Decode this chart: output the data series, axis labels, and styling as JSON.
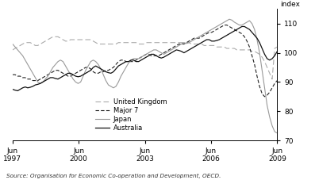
{
  "title": "",
  "ylabel": "index",
  "source": "Source: Organisation for Economic Co-operation and Development, OECD.",
  "ylim": [
    70,
    115
  ],
  "yticks": [
    70,
    80,
    90,
    100,
    110
  ],
  "x_tick_labels": [
    "Jun\n1997",
    "Jun\n2000",
    "Jun\n2003",
    "Jun\n2006",
    "Jun\n2009"
  ],
  "series": {
    "Australia": {
      "color": "#000000",
      "linestyle": "solid",
      "linewidth": 0.9
    },
    "Japan": {
      "color": "#999999",
      "linestyle": "solid",
      "linewidth": 0.9
    },
    "Major 7": {
      "color": "#000000",
      "linestyle": "dashed",
      "linewidth": 0.9
    },
    "United Kingdom": {
      "color": "#aaaaaa",
      "linestyle": "dashed",
      "linewidth": 0.9
    }
  },
  "australia": [
    87.5,
    87.2,
    87.0,
    87.5,
    88.0,
    88.3,
    88.0,
    88.2,
    88.5,
    89.0,
    89.2,
    89.5,
    90.0,
    90.5,
    91.0,
    91.5,
    91.5,
    91.2,
    91.0,
    91.5,
    92.0,
    92.5,
    93.0,
    93.0,
    92.5,
    92.0,
    91.8,
    92.0,
    92.5,
    93.0,
    93.5,
    94.0,
    95.0,
    95.5,
    95.0,
    94.5,
    94.0,
    93.5,
    93.2,
    93.0,
    93.5,
    94.5,
    95.5,
    96.0,
    96.5,
    97.0,
    97.0,
    97.5,
    97.5,
    97.0,
    97.0,
    97.5,
    98.0,
    98.5,
    99.0,
    99.5,
    99.5,
    99.0,
    98.5,
    98.2,
    98.5,
    99.0,
    99.5,
    100.0,
    100.5,
    101.0,
    100.8,
    100.5,
    100.0,
    100.5,
    101.0,
    101.5,
    102.0,
    102.5,
    103.0,
    103.5,
    104.0,
    104.5,
    104.5,
    104.0,
    104.0,
    104.2,
    104.5,
    105.0,
    105.5,
    106.0,
    106.5,
    107.0,
    107.5,
    108.0,
    108.5,
    109.0,
    109.0,
    108.5,
    108.0,
    107.0,
    106.0,
    105.0,
    103.5,
    101.5,
    99.5,
    98.0,
    97.5,
    98.0,
    99.0,
    100.5
  ],
  "japan": [
    103.0,
    102.0,
    101.0,
    100.0,
    99.0,
    97.5,
    96.0,
    94.5,
    93.0,
    91.5,
    90.0,
    89.5,
    90.0,
    91.0,
    92.0,
    93.5,
    95.0,
    96.0,
    97.0,
    97.5,
    97.0,
    95.5,
    94.0,
    92.5,
    91.0,
    90.0,
    89.5,
    90.0,
    92.0,
    94.0,
    95.5,
    97.0,
    97.5,
    97.0,
    96.0,
    94.5,
    92.5,
    90.5,
    89.0,
    88.5,
    88.0,
    88.5,
    90.0,
    92.0,
    93.5,
    95.0,
    96.5,
    97.5,
    98.0,
    98.0,
    98.0,
    98.5,
    99.0,
    99.5,
    100.0,
    100.5,
    101.0,
    101.0,
    100.5,
    100.0,
    99.5,
    100.0,
    100.5,
    101.0,
    101.5,
    102.0,
    102.5,
    103.0,
    103.5,
    103.2,
    103.5,
    104.0,
    104.5,
    105.0,
    105.5,
    106.0,
    106.5,
    107.0,
    107.5,
    108.0,
    108.5,
    109.0,
    109.5,
    110.0,
    110.5,
    111.0,
    111.5,
    111.2,
    110.5,
    110.0,
    109.5,
    109.5,
    110.0,
    110.5,
    111.0,
    110.0,
    108.0,
    104.5,
    100.0,
    94.0,
    88.0,
    82.0,
    78.0,
    75.0,
    73.0,
    72.5
  ],
  "major7": [
    92.5,
    92.5,
    92.0,
    92.0,
    91.5,
    91.5,
    91.0,
    91.0,
    90.5,
    90.5,
    90.5,
    91.0,
    91.5,
    92.0,
    92.5,
    93.0,
    93.5,
    94.0,
    94.0,
    93.5,
    93.0,
    92.5,
    92.0,
    92.0,
    92.5,
    93.0,
    93.5,
    94.0,
    94.5,
    95.0,
    95.0,
    94.5,
    93.5,
    93.0,
    93.0,
    93.5,
    93.5,
    94.0,
    94.0,
    94.5,
    95.0,
    96.0,
    97.0,
    97.5,
    97.5,
    97.0,
    97.0,
    97.0,
    97.0,
    97.5,
    98.0,
    98.5,
    99.0,
    99.5,
    99.5,
    99.0,
    99.0,
    99.0,
    99.0,
    99.5,
    100.0,
    100.5,
    101.0,
    101.5,
    102.0,
    102.5,
    103.0,
    103.0,
    103.0,
    103.5,
    104.0,
    104.5,
    105.0,
    105.0,
    105.0,
    105.5,
    106.0,
    106.5,
    107.0,
    107.0,
    107.5,
    108.0,
    108.5,
    109.0,
    109.5,
    109.5,
    109.0,
    108.5,
    108.0,
    107.5,
    107.0,
    106.5,
    105.5,
    104.0,
    102.0,
    99.0,
    96.0,
    92.0,
    88.5,
    86.0,
    85.0,
    85.5,
    86.5,
    88.0,
    89.5,
    90.5
  ],
  "uk": [
    101.0,
    101.5,
    102.0,
    102.5,
    103.0,
    103.5,
    103.5,
    103.5,
    103.0,
    102.5,
    102.5,
    103.0,
    103.5,
    104.0,
    104.5,
    105.0,
    105.5,
    105.5,
    105.5,
    105.0,
    104.5,
    104.0,
    104.0,
    104.5,
    104.5,
    104.5,
    104.5,
    104.5,
    104.5,
    104.5,
    104.5,
    104.5,
    104.0,
    103.5,
    103.0,
    103.0,
    103.0,
    103.0,
    103.0,
    103.0,
    103.0,
    103.0,
    103.5,
    103.5,
    103.5,
    103.5,
    103.5,
    103.5,
    103.5,
    103.5,
    103.0,
    103.0,
    103.0,
    103.5,
    103.5,
    103.5,
    103.5,
    103.5,
    103.5,
    103.5,
    103.5,
    103.5,
    103.5,
    103.5,
    103.5,
    103.5,
    103.5,
    103.5,
    103.5,
    103.5,
    103.5,
    103.0,
    103.0,
    103.0,
    103.0,
    103.0,
    102.5,
    102.5,
    102.5,
    102.5,
    102.5,
    102.0,
    102.0,
    102.0,
    102.0,
    101.5,
    101.5,
    101.5,
    101.5,
    101.0,
    101.0,
    101.0,
    101.0,
    101.0,
    101.0,
    100.5,
    100.5,
    100.0,
    99.5,
    98.5,
    97.0,
    95.0,
    93.0,
    91.0,
    101.5,
    102.0
  ]
}
